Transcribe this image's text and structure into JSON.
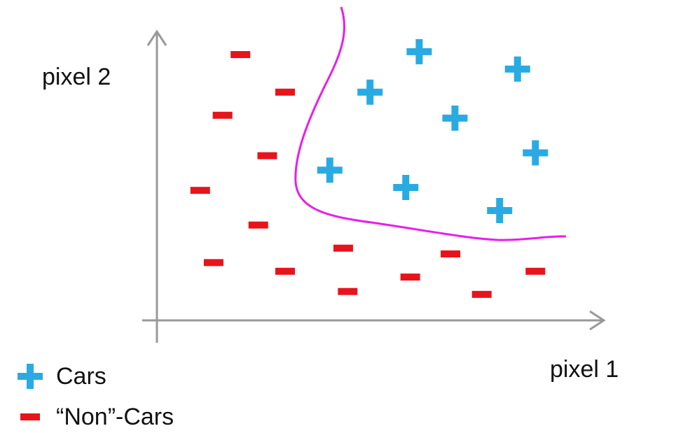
{
  "chart_data": {
    "type": "scatter",
    "x_label": "pixel 1",
    "y_label": "pixel 2",
    "xlim": [
      0,
      100
    ],
    "ylim": [
      0,
      100
    ],
    "legend": "bottom-left",
    "series": [
      {
        "name": "Cars",
        "color": "#29abe2",
        "marker": "plus",
        "x": [
          59,
          81,
          48,
          67,
          85,
          39,
          56,
          77
        ],
        "values": [
          93,
          87,
          79,
          70,
          58,
          52,
          46,
          38
        ]
      },
      {
        "name": "“Non”-Cars",
        "color": "#e8141b",
        "marker": "minus",
        "x": [
          19,
          29,
          15,
          25,
          10,
          23,
          42,
          13,
          29,
          66,
          43,
          57,
          85,
          73
        ],
        "values": [
          92,
          79,
          71,
          57,
          45,
          33,
          25,
          20,
          17,
          23,
          10,
          15,
          17,
          9
        ]
      }
    ]
  }
}
